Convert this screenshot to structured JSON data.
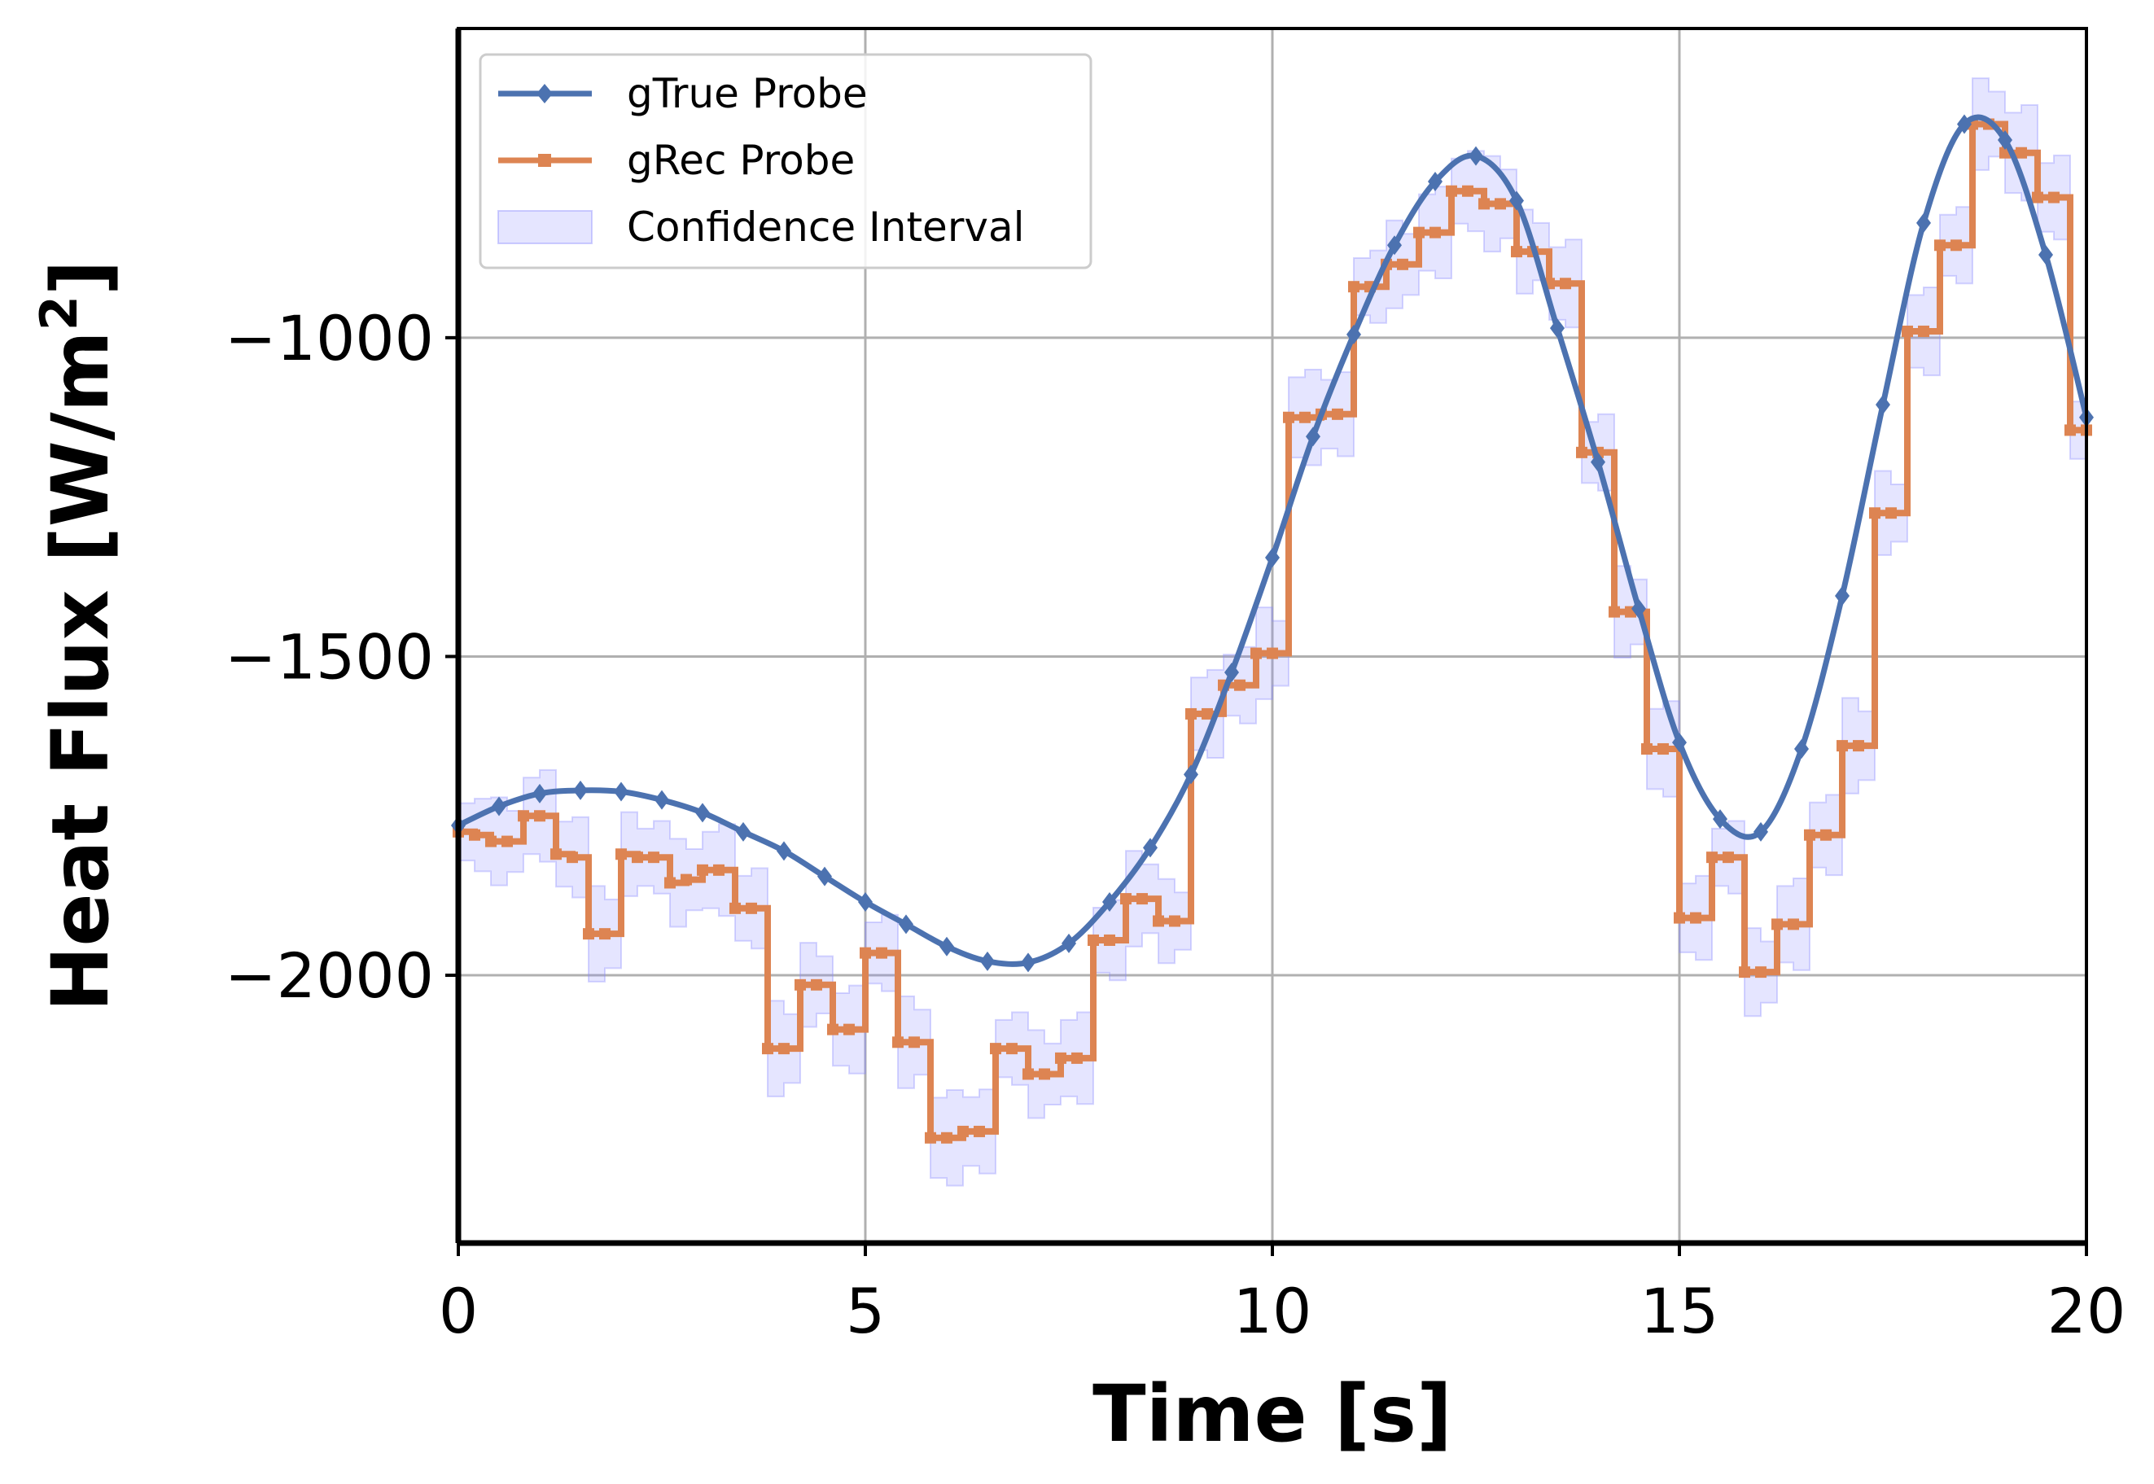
{
  "chart_data": {
    "type": "line",
    "xlabel": "Time [s]",
    "ylabel_main": "Heat Flux [W/m",
    "ylabel_sup": "2",
    "ylabel_close": "]",
    "xlim": [
      0,
      20
    ],
    "ylim": [
      -2420,
      -515
    ],
    "xticks": [
      0,
      5,
      10,
      15,
      20
    ],
    "xtick_labels": [
      "0",
      "5",
      "10",
      "15",
      "20"
    ],
    "yticks": [
      -1000,
      -1500,
      -2000
    ],
    "ytick_labels": [
      "−1000",
      "−1500",
      "−2000"
    ],
    "grid": true,
    "legend_position": "top-left",
    "series": [
      {
        "name": "gTrue Probe",
        "color": "#4c72b0",
        "marker": "diamond",
        "x": [
          0.0,
          0.5,
          1.0,
          1.5,
          2.0,
          2.5,
          3.0,
          3.5,
          4.0,
          4.5,
          5.0,
          5.5,
          6.0,
          6.5,
          7.0,
          7.5,
          8.0,
          8.5,
          9.0,
          9.5,
          10.0,
          10.5,
          11.0,
          11.5,
          12.0,
          12.5,
          13.0,
          13.5,
          14.0,
          14.5,
          15.0,
          15.5,
          16.0,
          16.5,
          17.0,
          17.5,
          18.0,
          18.5,
          19.0,
          19.5,
          20.0
        ],
        "y": [
          -1765,
          -1735,
          -1715,
          -1710,
          -1712,
          -1725,
          -1745,
          -1775,
          -1805,
          -1845,
          -1885,
          -1920,
          -1955,
          -1978,
          -1980,
          -1950,
          -1885,
          -1800,
          -1685,
          -1525,
          -1345,
          -1155,
          -995,
          -855,
          -755,
          -715,
          -785,
          -985,
          -1195,
          -1425,
          -1635,
          -1755,
          -1775,
          -1645,
          -1405,
          -1105,
          -820,
          -665,
          -690,
          -870,
          -1125
        ]
      },
      {
        "name": "gRec Probe",
        "color": "#dd8452",
        "marker": "square",
        "x": [
          0.0,
          0.2,
          0.4,
          0.6,
          0.8,
          1.0,
          1.2,
          1.4,
          1.6,
          1.8,
          2.0,
          2.2,
          2.4,
          2.6,
          2.8,
          3.0,
          3.2,
          3.4,
          3.6,
          3.8,
          4.0,
          4.2,
          4.4,
          4.6,
          4.8,
          5.0,
          5.2,
          5.4,
          5.6,
          5.8,
          6.0,
          6.2,
          6.4,
          6.6,
          6.8,
          7.0,
          7.2,
          7.4,
          7.6,
          7.8,
          8.0,
          8.2,
          8.4,
          8.6,
          8.8,
          9.0,
          9.2,
          9.4,
          9.6,
          9.8,
          10.0,
          10.2,
          10.4,
          10.6,
          10.8,
          11.0,
          11.2,
          11.4,
          11.6,
          11.8,
          12.0,
          12.2,
          12.4,
          12.6,
          12.8,
          13.0,
          13.2,
          13.4,
          13.6,
          13.8,
          14.0,
          14.2,
          14.4,
          14.6,
          14.8,
          15.0,
          15.2,
          15.4,
          15.6,
          15.8,
          16.0,
          16.2,
          16.4,
          16.6,
          16.8,
          17.0,
          17.2,
          17.4,
          17.6,
          17.8,
          18.0,
          18.2,
          18.4,
          18.6,
          18.8,
          19.0,
          19.2,
          19.4,
          19.6,
          19.8,
          20.0
        ],
        "y": [
          -1775,
          -1780,
          -1790,
          -1790,
          -1750,
          -1750,
          -1810,
          -1815,
          -1935,
          -1935,
          -1810,
          -1815,
          -1815,
          -1855,
          -1850,
          -1835,
          -1835,
          -1895,
          -1895,
          -2115,
          -2115,
          -2015,
          -2015,
          -2085,
          -2085,
          -1965,
          -1965,
          -2105,
          -2105,
          -2255,
          -2255,
          -2245,
          -2245,
          -2115,
          -2115,
          -2155,
          -2155,
          -2130,
          -2130,
          -1945,
          -1945,
          -1880,
          -1880,
          -1915,
          -1915,
          -1590,
          -1590,
          -1545,
          -1545,
          -1495,
          -1495,
          -1125,
          -1125,
          -1120,
          -1120,
          -920,
          -920,
          -885,
          -885,
          -835,
          -835,
          -770,
          -770,
          -790,
          -790,
          -865,
          -865,
          -915,
          -915,
          -1180,
          -1180,
          -1430,
          -1430,
          -1645,
          -1645,
          -1910,
          -1910,
          -1815,
          -1815,
          -1995,
          -1995,
          -1920,
          -1920,
          -1780,
          -1780,
          -1640,
          -1640,
          -1275,
          -1275,
          -990,
          -990,
          -855,
          -855,
          -665,
          -665,
          -710,
          -710,
          -780,
          -780,
          -1145,
          -1145
        ]
      }
    ],
    "band": {
      "name": "Confidence Interval",
      "fill": "#8a8aff",
      "opacity": 0.22,
      "half_width": 60
    }
  }
}
